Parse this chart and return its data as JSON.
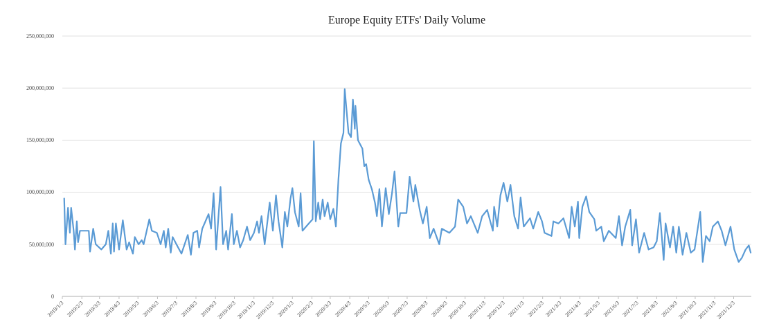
{
  "chart_data": {
    "type": "line",
    "title": "Europe Equity ETFs' Daily Volume",
    "x": [
      "2019-01-06",
      "2019-01-08",
      "2019-01-12",
      "2019-01-15",
      "2019-01-17",
      "2019-01-21",
      "2019-01-23",
      "2019-01-26",
      "2019-01-28",
      "2019-01-31",
      "2019-02-14",
      "2019-02-16",
      "2019-02-21",
      "2019-02-25",
      "2019-03-06",
      "2019-03-13",
      "2019-03-17",
      "2019-03-21",
      "2019-03-24",
      "2019-03-26",
      "2019-03-29",
      "2019-04-03",
      "2019-04-09",
      "2019-04-15",
      "2019-04-19",
      "2019-04-25",
      "2019-04-28",
      "2019-05-04",
      "2019-05-09",
      "2019-05-12",
      "2019-05-21",
      "2019-05-25",
      "2019-06-02",
      "2019-06-08",
      "2019-06-13",
      "2019-06-16",
      "2019-06-20",
      "2019-06-24",
      "2019-06-27",
      "2019-07-03",
      "2019-07-11",
      "2019-07-16",
      "2019-07-21",
      "2019-07-26",
      "2019-07-30",
      "2019-08-05",
      "2019-08-08",
      "2019-08-13",
      "2019-08-18",
      "2019-08-23",
      "2019-08-27",
      "2019-08-31",
      "2019-09-04",
      "2019-09-11",
      "2019-09-15",
      "2019-09-20",
      "2019-09-23",
      "2019-09-29",
      "2019-10-02",
      "2019-10-07",
      "2019-10-12",
      "2019-10-17",
      "2019-10-23",
      "2019-10-28",
      "2019-11-03",
      "2019-11-08",
      "2019-11-11",
      "2019-11-15",
      "2019-11-20",
      "2019-11-28",
      "2019-12-03",
      "2019-12-08",
      "2019-12-12",
      "2019-12-18",
      "2019-12-22",
      "2019-12-26",
      "2019-12-31",
      "2020-01-03",
      "2020-01-07",
      "2020-01-13",
      "2020-01-16",
      "2020-01-19",
      "2020-01-29",
      "2020-02-04",
      "2020-02-06",
      "2020-02-09",
      "2020-02-13",
      "2020-02-16",
      "2020-02-20",
      "2020-02-23",
      "2020-02-28",
      "2020-03-03",
      "2020-03-08",
      "2020-03-12",
      "2020-03-16",
      "2020-03-20",
      "2020-03-24",
      "2020-03-26",
      "2020-04-01",
      "2020-04-05",
      "2020-04-08",
      "2020-04-11",
      "2020-04-12",
      "2020-04-16",
      "2020-04-23",
      "2020-04-26",
      "2020-04-29",
      "2020-05-03",
      "2020-05-08",
      "2020-05-13",
      "2020-05-16",
      "2020-05-20",
      "2020-05-24",
      "2020-05-30",
      "2020-06-04",
      "2020-06-09",
      "2020-06-13",
      "2020-06-19",
      "2020-06-22",
      "2020-07-02",
      "2020-07-07",
      "2020-07-13",
      "2020-07-16",
      "2020-07-23",
      "2020-07-28",
      "2020-08-03",
      "2020-08-08",
      "2020-08-14",
      "2020-08-23",
      "2020-08-27",
      "2020-09-08",
      "2020-09-17",
      "2020-09-22",
      "2020-09-30",
      "2020-10-06",
      "2020-10-12",
      "2020-10-23",
      "2020-10-30",
      "2020-11-07",
      "2020-11-16",
      "2020-11-18",
      "2020-11-23",
      "2020-11-28",
      "2020-12-03",
      "2020-12-09",
      "2020-12-14",
      "2020-12-20",
      "2020-12-26",
      "2020-12-30",
      "2021-01-04",
      "2021-01-14",
      "2021-01-19",
      "2021-01-27",
      "2021-02-02",
      "2021-02-06",
      "2021-02-17",
      "2021-02-20",
      "2021-02-28",
      "2021-03-08",
      "2021-03-17",
      "2021-03-21",
      "2021-03-26",
      "2021-03-31",
      "2021-04-02",
      "2021-04-07",
      "2021-04-13",
      "2021-04-18",
      "2021-04-26",
      "2021-04-29",
      "2021-05-07",
      "2021-05-11",
      "2021-05-19",
      "2021-05-30",
      "2021-06-04",
      "2021-06-09",
      "2021-06-14",
      "2021-06-22",
      "2021-06-25",
      "2021-07-01",
      "2021-07-06",
      "2021-07-14",
      "2021-07-21",
      "2021-07-29",
      "2021-08-03",
      "2021-08-08",
      "2021-08-14",
      "2021-08-17",
      "2021-08-24",
      "2021-08-29",
      "2021-09-03",
      "2021-09-07",
      "2021-09-13",
      "2021-09-19",
      "2021-09-26",
      "2021-10-02",
      "2021-10-11",
      "2021-10-15",
      "2021-10-20",
      "2021-10-26",
      "2021-10-31",
      "2021-11-08",
      "2021-11-14",
      "2021-11-20",
      "2021-11-28",
      "2021-12-04",
      "2021-12-11",
      "2021-12-16",
      "2021-12-22",
      "2021-12-27",
      "2021-12-30"
    ],
    "series": [
      {
        "color": "#5b9bd5",
        "values": [
          94000000,
          50000000,
          85000000,
          61000000,
          85000000,
          63000000,
          45000000,
          72000000,
          52000000,
          63000000,
          63000000,
          43000000,
          65000000,
          50000000,
          45000000,
          50000000,
          63000000,
          41000000,
          70000000,
          43000000,
          70000000,
          45000000,
          73000000,
          45000000,
          52000000,
          41000000,
          57000000,
          50000000,
          54000000,
          50000000,
          74000000,
          63000000,
          61000000,
          50000000,
          63000000,
          47000000,
          65000000,
          42000000,
          57000000,
          50000000,
          41000000,
          50000000,
          59000000,
          40000000,
          61000000,
          63000000,
          47000000,
          65000000,
          72000000,
          79000000,
          65000000,
          99000000,
          45000000,
          105000000,
          50000000,
          63000000,
          45000000,
          79000000,
          50000000,
          63000000,
          47000000,
          54000000,
          67000000,
          54000000,
          61000000,
          72000000,
          61000000,
          77000000,
          50000000,
          90000000,
          63000000,
          97000000,
          72000000,
          47000000,
          81000000,
          67000000,
          94000000,
          104000000,
          81000000,
          67000000,
          99000000,
          63000000,
          70000000,
          74000000,
          149000000,
          72000000,
          90000000,
          74000000,
          93000000,
          77000000,
          90000000,
          74000000,
          84000000,
          67000000,
          112000000,
          147000000,
          157000000,
          199000000,
          157000000,
          153000000,
          189000000,
          161000000,
          183000000,
          150000000,
          142000000,
          125000000,
          127000000,
          112000000,
          103000000,
          90000000,
          77000000,
          103000000,
          67000000,
          104000000,
          79000000,
          99000000,
          120000000,
          67000000,
          80000000,
          80000000,
          115000000,
          91000000,
          107000000,
          83000000,
          70000000,
          86000000,
          56000000,
          65000000,
          50000000,
          65000000,
          61000000,
          67000000,
          93000000,
          86000000,
          70000000,
          77000000,
          61000000,
          77000000,
          83000000,
          63000000,
          86000000,
          67000000,
          97000000,
          109000000,
          91000000,
          107000000,
          77000000,
          65000000,
          95000000,
          67000000,
          75000000,
          65000000,
          81000000,
          72000000,
          61000000,
          58000000,
          72000000,
          70000000,
          75000000,
          56000000,
          86000000,
          67000000,
          91000000,
          56000000,
          86000000,
          96000000,
          81000000,
          74000000,
          63000000,
          67000000,
          53000000,
          63000000,
          56000000,
          77000000,
          49000000,
          67000000,
          83000000,
          49000000,
          74000000,
          42000000,
          61000000,
          45000000,
          47000000,
          53000000,
          80000000,
          35000000,
          70000000,
          47000000,
          67000000,
          42000000,
          67000000,
          40000000,
          61000000,
          42000000,
          45000000,
          81000000,
          33000000,
          58000000,
          53000000,
          67000000,
          72000000,
          63000000,
          49000000,
          67000000,
          45000000,
          33000000,
          37000000,
          45000000,
          49000000,
          42000000
        ]
      }
    ],
    "xlim": [
      "2019-01-03",
      "2021-12-31"
    ],
    "xticks": [
      {
        "value": "2019-01-03",
        "label": "2019/1/3"
      },
      {
        "value": "2019-02-03",
        "label": "2019/2/3"
      },
      {
        "value": "2019-03-03",
        "label": "2019/3/3"
      },
      {
        "value": "2019-04-03",
        "label": "2019/4/3"
      },
      {
        "value": "2019-05-03",
        "label": "2019/5/3"
      },
      {
        "value": "2019-06-03",
        "label": "2019/6/3"
      },
      {
        "value": "2019-07-03",
        "label": "2019/7/3"
      },
      {
        "value": "2019-08-03",
        "label": "2019/8/3"
      },
      {
        "value": "2019-09-03",
        "label": "2019/9/3"
      },
      {
        "value": "2019-10-03",
        "label": "2019/10/3"
      },
      {
        "value": "2019-11-03",
        "label": "2019/11/3"
      },
      {
        "value": "2019-12-03",
        "label": "2019/12/3"
      },
      {
        "value": "2020-01-03",
        "label": "2020/1/3"
      },
      {
        "value": "2020-02-03",
        "label": "2020/2/3"
      },
      {
        "value": "2020-03-03",
        "label": "2020/3/3"
      },
      {
        "value": "2020-04-03",
        "label": "2020/4/3"
      },
      {
        "value": "2020-05-03",
        "label": "2020/5/3"
      },
      {
        "value": "2020-06-03",
        "label": "2020/6/3"
      },
      {
        "value": "2020-07-03",
        "label": "2020/7/3"
      },
      {
        "value": "2020-08-03",
        "label": "2020/8/3"
      },
      {
        "value": "2020-09-03",
        "label": "2020/9/3"
      },
      {
        "value": "2020-10-03",
        "label": "2020/10/3"
      },
      {
        "value": "2020-11-03",
        "label": "2020/11/3"
      },
      {
        "value": "2020-12-03",
        "label": "2020/12/3"
      },
      {
        "value": "2021-01-03",
        "label": "2021/1/3"
      },
      {
        "value": "2021-02-03",
        "label": "2021/2/3"
      },
      {
        "value": "2021-03-03",
        "label": "2021/3/3"
      },
      {
        "value": "2021-04-03",
        "label": "2021/4/3"
      },
      {
        "value": "2021-05-03",
        "label": "2021/5/3"
      },
      {
        "value": "2021-06-03",
        "label": "2021/6/3"
      },
      {
        "value": "2021-07-03",
        "label": "2021/7/3"
      },
      {
        "value": "2021-08-03",
        "label": "2021/8/3"
      },
      {
        "value": "2021-09-03",
        "label": "2021/9/3"
      },
      {
        "value": "2021-10-03",
        "label": "2021/10/3"
      },
      {
        "value": "2021-11-03",
        "label": "2021/11/3"
      },
      {
        "value": "2021-12-03",
        "label": "2021/12/3"
      }
    ],
    "ylim": [
      0,
      250000000
    ],
    "yticks": [
      {
        "value": 0,
        "label": "0"
      },
      {
        "value": 50000000,
        "label": "50,000,000"
      },
      {
        "value": 100000000,
        "label": "100,000,000"
      },
      {
        "value": 150000000,
        "label": "150,000,000"
      },
      {
        "value": 200000000,
        "label": "200,000,000"
      },
      {
        "value": 250000000,
        "label": "250,000,000"
      }
    ],
    "grid": "y",
    "marker": "none",
    "line_style": "solid"
  }
}
